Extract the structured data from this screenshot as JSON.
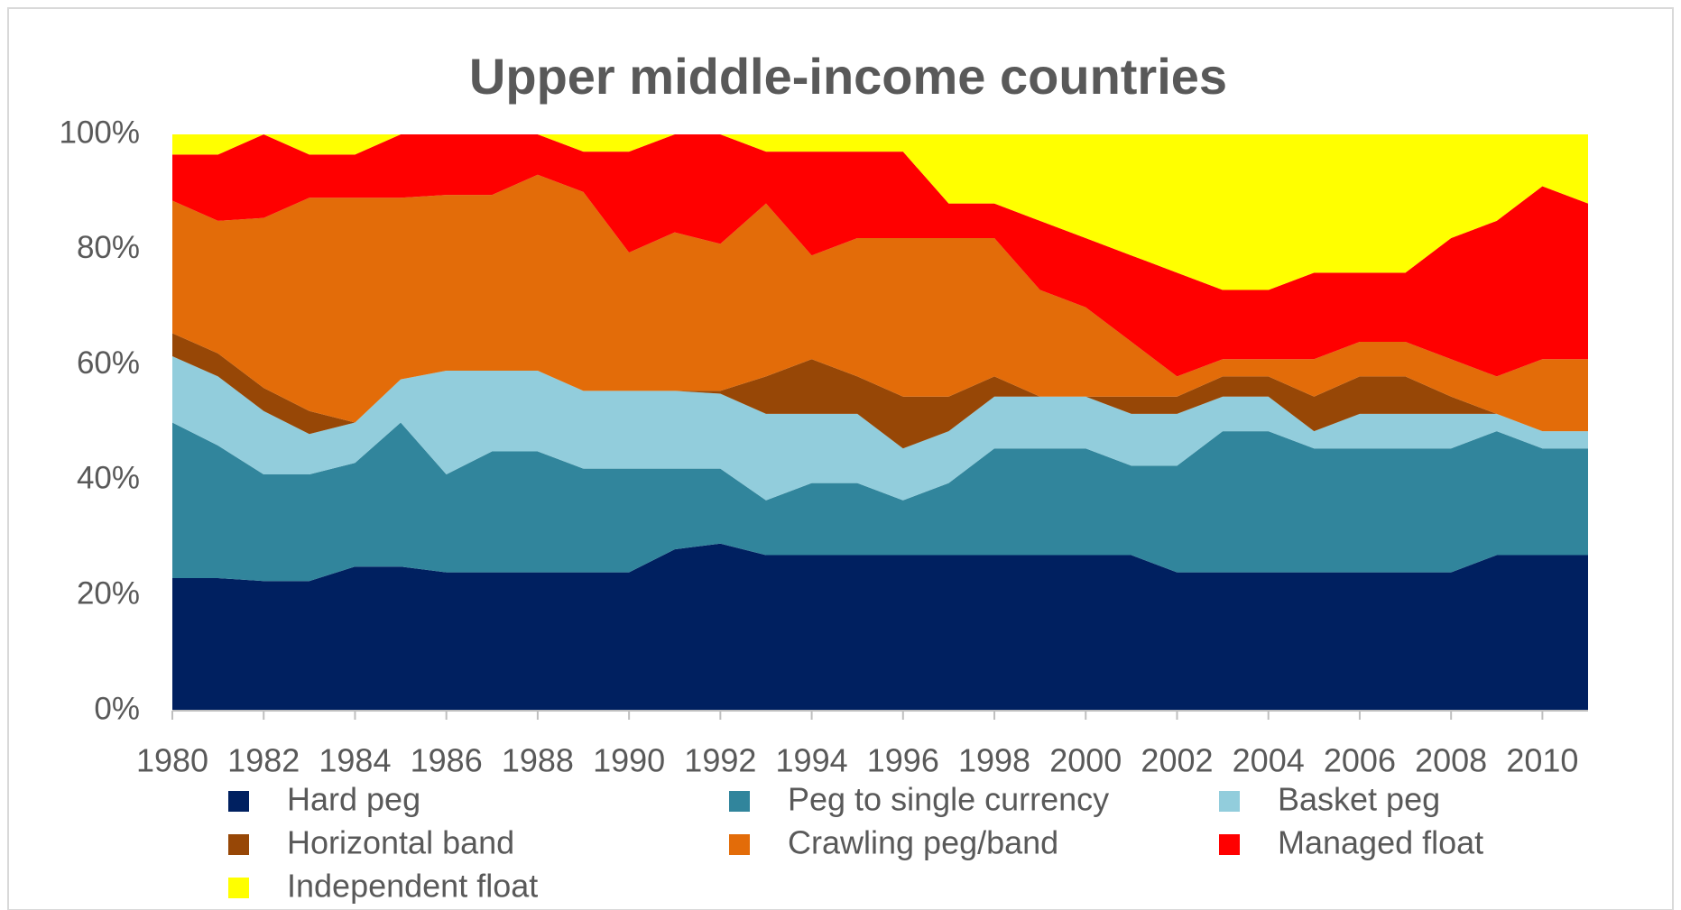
{
  "chart_data": {
    "type": "stacked-area",
    "title": "Upper middle-income countries",
    "x": [
      1980,
      1981,
      1982,
      1983,
      1984,
      1985,
      1986,
      1987,
      1988,
      1989,
      1990,
      1991,
      1992,
      1993,
      1994,
      1995,
      1996,
      1997,
      1998,
      1999,
      2000,
      2001,
      2002,
      2003,
      2004,
      2005,
      2006,
      2007,
      2008,
      2009,
      2010,
      2011
    ],
    "xlim": [
      1980,
      2011
    ],
    "xticks": [
      1980,
      1982,
      1984,
      1986,
      1988,
      1990,
      1992,
      1994,
      1996,
      1998,
      2000,
      2002,
      2004,
      2006,
      2008,
      2010
    ],
    "ylim": [
      0,
      100
    ],
    "yticks": [
      {
        "value": 0,
        "label": "0%"
      },
      {
        "value": 20,
        "label": "20%"
      },
      {
        "value": 40,
        "label": "40%"
      },
      {
        "value": 60,
        "label": "60%"
      },
      {
        "value": 80,
        "label": "80%"
      },
      {
        "value": 100,
        "label": "100%"
      }
    ],
    "series": [
      {
        "name": "Hard peg",
        "color": "#002060",
        "values": [
          23,
          23,
          22.5,
          22.5,
          25,
          25,
          24,
          24,
          24,
          24,
          24,
          28,
          29,
          27,
          27,
          27,
          27,
          27,
          27,
          27,
          27,
          27,
          24,
          24,
          24,
          24,
          24,
          24,
          24,
          27,
          27,
          27
        ]
      },
      {
        "name": "Peg to single currency",
        "color": "#31859c",
        "values": [
          27,
          23,
          18.5,
          18.5,
          18,
          25,
          17,
          21,
          21,
          18,
          18,
          14,
          13,
          9.5,
          12.5,
          12.5,
          9.5,
          12.5,
          18.5,
          18.5,
          18.5,
          15.5,
          18.5,
          24.5,
          24.5,
          21.5,
          21.5,
          21.5,
          21.5,
          21.5,
          18.5,
          18.5
        ]
      },
      {
        "name": "Basket peg",
        "color": "#92cddc",
        "values": [
          11.5,
          12,
          11,
          7,
          7,
          7.5,
          18,
          14,
          14,
          13.5,
          13.5,
          13.5,
          13,
          15,
          12,
          12,
          9,
          9,
          9,
          9,
          9,
          9,
          9,
          6,
          6,
          3,
          6,
          6,
          6,
          3,
          3,
          3
        ]
      },
      {
        "name": "Horizontal band",
        "color": "#974706",
        "values": [
          4,
          4,
          4,
          4,
          0,
          0,
          0,
          0,
          0,
          0,
          0,
          0,
          0.5,
          6.5,
          9.5,
          6.5,
          9,
          6,
          3.5,
          0,
          0,
          3,
          3,
          3.5,
          3.5,
          6,
          6.5,
          6.5,
          3,
          0,
          0,
          0
        ]
      },
      {
        "name": "Crawling peg/band",
        "color": "#e36c09",
        "values": [
          23,
          23,
          29.5,
          37,
          39,
          31.5,
          30.5,
          30.5,
          34,
          34.5,
          24,
          27.5,
          25.5,
          30,
          18,
          24,
          27.5,
          27.5,
          24,
          18.5,
          15.5,
          9.5,
          3.5,
          3,
          3,
          6.5,
          6,
          6,
          6.5,
          6.5,
          12.5,
          12.5
        ]
      },
      {
        "name": "Managed float",
        "color": "#ff0000",
        "values": [
          8,
          11.5,
          14.5,
          7.5,
          7.5,
          11,
          10.5,
          10.5,
          7,
          7,
          17.5,
          17,
          19,
          9,
          18,
          15,
          15,
          6,
          6,
          12,
          12,
          15,
          18,
          12,
          12,
          15,
          12,
          12,
          21,
          27,
          30,
          27
        ]
      },
      {
        "name": "Independent float",
        "color": "#ffff00",
        "values": [
          3.5,
          3.5,
          0,
          3.5,
          3.5,
          0,
          0,
          0,
          0,
          3,
          3,
          0,
          0,
          3,
          3,
          3,
          3,
          12,
          12,
          15,
          18,
          21,
          24,
          27,
          27,
          24,
          24,
          24,
          18,
          15,
          9,
          12
        ]
      }
    ]
  }
}
